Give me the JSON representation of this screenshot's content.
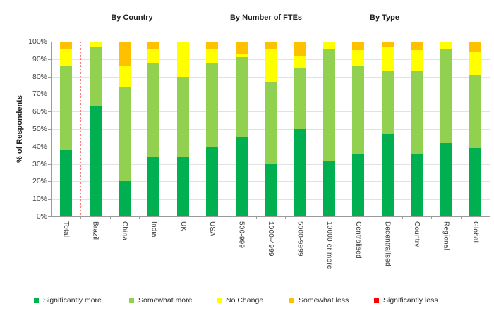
{
  "chart_data": {
    "type": "bar",
    "subtype": "stacked-100-percent",
    "ylabel": "% of Respondents",
    "ylim": [
      0,
      100
    ],
    "ytick_step": 10,
    "ytick_suffix": "%",
    "grid": "horizontal",
    "legend_position": "bottom",
    "title_groups": [
      {
        "label": "By Country"
      },
      {
        "label": "By Number of FTEs"
      },
      {
        "label": "By Type"
      }
    ],
    "categories": [
      "Total",
      "Brazil",
      "China",
      "India",
      "UK",
      "USA",
      "500-999",
      "1000-4999",
      "5000-9999",
      "10000 or more",
      "Centralised",
      "Decentralised",
      "Country",
      "Regional",
      "Global"
    ],
    "separators_after_category_index": [
      0,
      5,
      9
    ],
    "series": [
      {
        "name": "Significantly more",
        "color": "#00B050",
        "values": [
          38,
          63,
          20,
          34,
          34,
          40,
          45,
          30,
          50,
          32,
          36,
          47,
          36,
          42,
          39
        ]
      },
      {
        "name": "Somewhat more",
        "color": "#92D050",
        "values": [
          48,
          34,
          54,
          54,
          46,
          48,
          46,
          47,
          35,
          64,
          50,
          36,
          47,
          54,
          42
        ]
      },
      {
        "name": "No Change",
        "color": "#FFFF00",
        "values": [
          10,
          3,
          12,
          8,
          20,
          8,
          2,
          19,
          7,
          4,
          9,
          14,
          12,
          4,
          13
        ]
      },
      {
        "name": "Somewhat less",
        "color": "#FFC000",
        "values": [
          4,
          0,
          14,
          4,
          0,
          4,
          7,
          4,
          8,
          0,
          5,
          3,
          5,
          0,
          6
        ]
      },
      {
        "name": "Significantly less",
        "color": "#FF0000",
        "values": [
          0,
          0,
          0,
          0,
          0,
          0,
          0,
          0,
          0,
          0,
          0,
          0,
          0,
          0,
          0
        ]
      }
    ],
    "separator_color": "#FF7C80"
  },
  "legend_x_positions": [
    48,
    183,
    307,
    410,
    530
  ]
}
